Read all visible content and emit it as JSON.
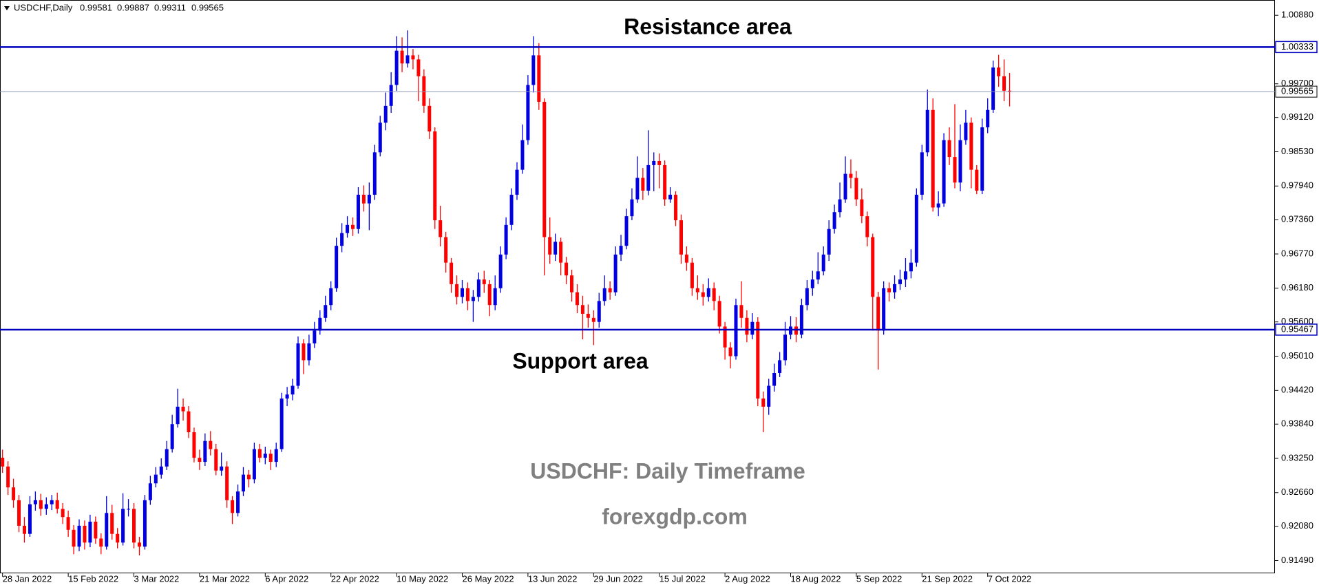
{
  "chart_data": {
    "type": "candlestick",
    "symbol": "USDCHF,Daily",
    "annotations": [
      "Resistance area",
      "Support area",
      "USDCHF: Daily Timeframe",
      "forexgdp.com"
    ],
    "colors": {
      "up": "#0000e0",
      "down": "#ff0000",
      "level": "#0000c0",
      "last": "#8c96b4"
    },
    "ylim": [
      0.91271,
      1.01143
    ],
    "yticks": [
      {
        "value": 1.0088,
        "label": "1.00880"
      },
      {
        "value": 0.997,
        "label": "0.99700"
      },
      {
        "value": 0.9912,
        "label": "0.99120"
      },
      {
        "value": 0.9853,
        "label": "0.98530"
      },
      {
        "value": 0.9794,
        "label": "0.97940"
      },
      {
        "value": 0.9736,
        "label": "0.97360"
      },
      {
        "value": 0.9677,
        "label": "0.96770"
      },
      {
        "value": 0.9618,
        "label": "0.96180"
      },
      {
        "value": 0.956,
        "label": "0.95600"
      },
      {
        "value": 0.9501,
        "label": "0.95010"
      },
      {
        "value": 0.9442,
        "label": "0.94420"
      },
      {
        "value": 0.9384,
        "label": "0.93840"
      },
      {
        "value": 0.9325,
        "label": "0.93250"
      },
      {
        "value": 0.9266,
        "label": "0.92660"
      },
      {
        "value": 0.9208,
        "label": "0.92080"
      },
      {
        "value": 0.9149,
        "label": "0.91490"
      }
    ],
    "xticks": [
      {
        "value": 0,
        "label": "28 Jan 2022"
      },
      {
        "value": 12,
        "label": "15 Feb 2022"
      },
      {
        "value": 24,
        "label": "3 Mar 2022"
      },
      {
        "value": 36,
        "label": "21 Mar 2022"
      },
      {
        "value": 48,
        "label": "6 Apr 2022"
      },
      {
        "value": 60,
        "label": "22 Apr 2022"
      },
      {
        "value": 72,
        "label": "10 May 2022"
      },
      {
        "value": 84,
        "label": "26 May 2022"
      },
      {
        "value": 96,
        "label": "13 Jun 2022"
      },
      {
        "value": 108,
        "label": "29 Jun 2022"
      },
      {
        "value": 120,
        "label": "15 Jul 2022"
      },
      {
        "value": 132,
        "label": "2 Aug 2022"
      },
      {
        "value": 144,
        "label": "18 Aug 2022"
      },
      {
        "value": 156,
        "label": "5 Sep 2022"
      },
      {
        "value": 168,
        "label": "21 Sep 2022"
      },
      {
        "value": 180,
        "label": "7 Oct 2022"
      }
    ],
    "hlines": [
      {
        "value": 1.00333
      },
      {
        "value": 0.95467
      }
    ],
    "ohlc": [
      [
        0.9326,
        0.934,
        0.93,
        0.9311
      ],
      [
        0.9311,
        0.932,
        0.9262,
        0.9275
      ],
      [
        0.9275,
        0.929,
        0.924,
        0.9253
      ],
      [
        0.9253,
        0.9262,
        0.9198,
        0.9209
      ],
      [
        0.9209,
        0.9224,
        0.918,
        0.9195
      ],
      [
        0.9195,
        0.926,
        0.919,
        0.9246
      ],
      [
        0.9246,
        0.9268,
        0.9235,
        0.9253
      ],
      [
        0.9253,
        0.9264,
        0.9226,
        0.9238
      ],
      [
        0.9238,
        0.9258,
        0.9228,
        0.9246
      ],
      [
        0.9246,
        0.9262,
        0.9236,
        0.9253
      ],
      [
        0.9253,
        0.9266,
        0.923,
        0.9238
      ],
      [
        0.9238,
        0.9248,
        0.9212,
        0.9224
      ],
      [
        0.9224,
        0.9235,
        0.919,
        0.9202
      ],
      [
        0.9202,
        0.921,
        0.916,
        0.9173
      ],
      [
        0.9173,
        0.922,
        0.9165,
        0.9209
      ],
      [
        0.9209,
        0.9218,
        0.9168,
        0.918
      ],
      [
        0.918,
        0.9228,
        0.9172,
        0.9216
      ],
      [
        0.9216,
        0.9225,
        0.9178,
        0.9187
      ],
      [
        0.9187,
        0.9196,
        0.916,
        0.9173
      ],
      [
        0.9173,
        0.926,
        0.9168,
        0.9231
      ],
      [
        0.9231,
        0.9245,
        0.9185,
        0.9195
      ],
      [
        0.9195,
        0.9205,
        0.917,
        0.918
      ],
      [
        0.918,
        0.9265,
        0.9175,
        0.9238
      ],
      [
        0.9238,
        0.9255,
        0.9225,
        0.9238
      ],
      [
        0.9238,
        0.9248,
        0.917,
        0.918
      ],
      [
        0.918,
        0.919,
        0.9158,
        0.9173
      ],
      [
        0.9173,
        0.9262,
        0.9168,
        0.9253
      ],
      [
        0.9253,
        0.9295,
        0.9245,
        0.9282
      ],
      [
        0.9282,
        0.931,
        0.9275,
        0.9297
      ],
      [
        0.9297,
        0.9325,
        0.929,
        0.9311
      ],
      [
        0.9311,
        0.9355,
        0.9305,
        0.9341
      ],
      [
        0.9341,
        0.94,
        0.9335,
        0.9384
      ],
      [
        0.9384,
        0.9445,
        0.9378,
        0.9414
      ],
      [
        0.9414,
        0.9428,
        0.939,
        0.9406
      ],
      [
        0.9406,
        0.9415,
        0.936,
        0.937
      ],
      [
        0.937,
        0.9378,
        0.9318,
        0.9326
      ],
      [
        0.9326,
        0.934,
        0.9305,
        0.9319
      ],
      [
        0.9319,
        0.9368,
        0.9312,
        0.9355
      ],
      [
        0.9355,
        0.9372,
        0.933,
        0.9341
      ],
      [
        0.9341,
        0.935,
        0.9296,
        0.9304
      ],
      [
        0.9304,
        0.9335,
        0.9295,
        0.9311
      ],
      [
        0.9311,
        0.932,
        0.924,
        0.9253
      ],
      [
        0.9253,
        0.926,
        0.9212,
        0.9231
      ],
      [
        0.9231,
        0.928,
        0.9225,
        0.9268
      ],
      [
        0.9268,
        0.931,
        0.926,
        0.9297
      ],
      [
        0.9297,
        0.9305,
        0.9275,
        0.9289
      ],
      [
        0.9289,
        0.9352,
        0.9282,
        0.9341
      ],
      [
        0.9341,
        0.935,
        0.9318,
        0.9326
      ],
      [
        0.9326,
        0.9345,
        0.9315,
        0.9333
      ],
      [
        0.9333,
        0.934,
        0.9305,
        0.9319
      ],
      [
        0.9319,
        0.9352,
        0.931,
        0.9341
      ],
      [
        0.9341,
        0.9438,
        0.9336,
        0.9428
      ],
      [
        0.9428,
        0.9448,
        0.9415,
        0.9435
      ],
      [
        0.9435,
        0.9462,
        0.9425,
        0.945
      ],
      [
        0.945,
        0.9535,
        0.9445,
        0.9523
      ],
      [
        0.9523,
        0.953,
        0.947,
        0.9494
      ],
      [
        0.9494,
        0.9538,
        0.9485,
        0.9523
      ],
      [
        0.9523,
        0.956,
        0.9515,
        0.9545
      ],
      [
        0.9545,
        0.958,
        0.9538,
        0.9567
      ],
      [
        0.9567,
        0.9605,
        0.956,
        0.9589
      ],
      [
        0.9589,
        0.963,
        0.958,
        0.9618
      ],
      [
        0.9618,
        0.9705,
        0.9612,
        0.9691
      ],
      [
        0.9691,
        0.973,
        0.968,
        0.9713
      ],
      [
        0.9713,
        0.9742,
        0.9705,
        0.9727
      ],
      [
        0.9727,
        0.974,
        0.9708,
        0.972
      ],
      [
        0.972,
        0.9792,
        0.9712,
        0.9779
      ],
      [
        0.9779,
        0.9795,
        0.975,
        0.9764
      ],
      [
        0.9764,
        0.98,
        0.9718,
        0.9779
      ],
      [
        0.9779,
        0.9865,
        0.977,
        0.9852
      ],
      [
        0.9852,
        0.9915,
        0.9845,
        0.9903
      ],
      [
        0.9903,
        0.9955,
        0.989,
        0.9932
      ],
      [
        0.9932,
        0.999,
        0.992,
        0.9968
      ],
      [
        0.9968,
        1.0052,
        0.9958,
        1.0027
      ],
      [
        1.0027,
        1.005,
        0.999,
        1.0005
      ],
      [
        1.0005,
        1.0062,
        0.9998,
        1.0019
      ],
      [
        1.0019,
        1.003,
        0.9995,
        1.0012
      ],
      [
        1.0012,
        1.002,
        0.994,
        0.9983
      ],
      [
        0.9983,
        0.9995,
        0.992,
        0.9932
      ],
      [
        0.9932,
        0.9945,
        0.9875,
        0.9888
      ],
      [
        0.9888,
        0.9895,
        0.972,
        0.9735
      ],
      [
        0.9735,
        0.976,
        0.969,
        0.9706
      ],
      [
        0.9706,
        0.9715,
        0.9645,
        0.9662
      ],
      [
        0.9662,
        0.967,
        0.961,
        0.9625
      ],
      [
        0.9625,
        0.964,
        0.959,
        0.9603
      ],
      [
        0.9603,
        0.9632,
        0.9592,
        0.9618
      ],
      [
        0.9618,
        0.9628,
        0.958,
        0.9596
      ],
      [
        0.9596,
        0.9615,
        0.956,
        0.9603
      ],
      [
        0.9603,
        0.9645,
        0.9595,
        0.9633
      ],
      [
        0.9633,
        0.9648,
        0.961,
        0.9625
      ],
      [
        0.9625,
        0.9632,
        0.957,
        0.9589
      ],
      [
        0.9589,
        0.964,
        0.958,
        0.9618
      ],
      [
        0.9618,
        0.969,
        0.961,
        0.9676
      ],
      [
        0.9676,
        0.974,
        0.9668,
        0.9727
      ],
      [
        0.9727,
        0.979,
        0.9718,
        0.9779
      ],
      [
        0.9779,
        0.9835,
        0.977,
        0.9822
      ],
      [
        0.9822,
        0.99,
        0.9815,
        0.9873
      ],
      [
        0.9873,
        0.9985,
        0.9865,
        0.9968
      ],
      [
        0.9968,
        1.0052,
        0.9955,
        1.0019
      ],
      [
        1.0019,
        1.004,
        0.9925,
        0.9939
      ],
      [
        0.9939,
        0.9945,
        0.964,
        0.9706
      ],
      [
        0.9706,
        0.974,
        0.966,
        0.9676
      ],
      [
        0.9676,
        0.9712,
        0.9665,
        0.9698
      ],
      [
        0.9698,
        0.9705,
        0.964,
        0.9662
      ],
      [
        0.9662,
        0.9672,
        0.9625,
        0.964
      ],
      [
        0.964,
        0.965,
        0.9595,
        0.9611
      ],
      [
        0.9611,
        0.9625,
        0.9575,
        0.9589
      ],
      [
        0.9589,
        0.9605,
        0.953,
        0.9574
      ],
      [
        0.9574,
        0.959,
        0.955,
        0.9567
      ],
      [
        0.9567,
        0.958,
        0.952,
        0.956
      ],
      [
        0.956,
        0.961,
        0.955,
        0.9596
      ],
      [
        0.9596,
        0.964,
        0.9588,
        0.9618
      ],
      [
        0.9618,
        0.963,
        0.9598,
        0.9611
      ],
      [
        0.9611,
        0.969,
        0.9605,
        0.9676
      ],
      [
        0.9676,
        0.971,
        0.9665,
        0.9691
      ],
      [
        0.9691,
        0.9755,
        0.9685,
        0.9742
      ],
      [
        0.9742,
        0.979,
        0.9735,
        0.9771
      ],
      [
        0.9771,
        0.9845,
        0.9765,
        0.9808
      ],
      [
        0.9808,
        0.9825,
        0.977,
        0.9786
      ],
      [
        0.9786,
        0.989,
        0.9778,
        0.983
      ],
      [
        0.983,
        0.9852,
        0.9785,
        0.9837
      ],
      [
        0.9837,
        0.985,
        0.979,
        0.983
      ],
      [
        0.983,
        0.9838,
        0.976,
        0.9771
      ],
      [
        0.9771,
        0.9792,
        0.9765,
        0.9779
      ],
      [
        0.9779,
        0.9785,
        0.9725,
        0.9735
      ],
      [
        0.9735,
        0.9745,
        0.966,
        0.9676
      ],
      [
        0.9676,
        0.969,
        0.9648,
        0.9662
      ],
      [
        0.9662,
        0.967,
        0.9605,
        0.9618
      ],
      [
        0.9618,
        0.964,
        0.9598,
        0.9611
      ],
      [
        0.9611,
        0.9625,
        0.9588,
        0.9603
      ],
      [
        0.9603,
        0.9635,
        0.9595,
        0.9618
      ],
      [
        0.9618,
        0.9628,
        0.958,
        0.9596
      ],
      [
        0.9596,
        0.9605,
        0.954,
        0.9552
      ],
      [
        0.9552,
        0.956,
        0.9495,
        0.9516
      ],
      [
        0.9516,
        0.9525,
        0.948,
        0.9501
      ],
      [
        0.9501,
        0.96,
        0.9495,
        0.9589
      ],
      [
        0.9589,
        0.963,
        0.955,
        0.9567
      ],
      [
        0.9567,
        0.958,
        0.9525,
        0.9538
      ],
      [
        0.9538,
        0.9575,
        0.953,
        0.956
      ],
      [
        0.956,
        0.9568,
        0.9415,
        0.9428
      ],
      [
        0.9428,
        0.944,
        0.937,
        0.9414
      ],
      [
        0.9414,
        0.9462,
        0.94,
        0.945
      ],
      [
        0.945,
        0.9488,
        0.944,
        0.9472
      ],
      [
        0.9472,
        0.9508,
        0.9465,
        0.9494
      ],
      [
        0.9494,
        0.956,
        0.9485,
        0.9538
      ],
      [
        0.9538,
        0.957,
        0.953,
        0.9552
      ],
      [
        0.9552,
        0.9568,
        0.9525,
        0.9538
      ],
      [
        0.9538,
        0.96,
        0.9532,
        0.9589
      ],
      [
        0.9589,
        0.9632,
        0.958,
        0.9618
      ],
      [
        0.9618,
        0.9648,
        0.9605,
        0.9633
      ],
      [
        0.9633,
        0.968,
        0.9625,
        0.9647
      ],
      [
        0.9647,
        0.969,
        0.964,
        0.9676
      ],
      [
        0.9676,
        0.9735,
        0.9665,
        0.972
      ],
      [
        0.972,
        0.9762,
        0.9712,
        0.9749
      ],
      [
        0.9749,
        0.98,
        0.974,
        0.9771
      ],
      [
        0.9771,
        0.9845,
        0.9765,
        0.9815
      ],
      [
        0.9815,
        0.984,
        0.979,
        0.9808
      ],
      [
        0.9808,
        0.982,
        0.976,
        0.9771
      ],
      [
        0.9771,
        0.979,
        0.973,
        0.9742
      ],
      [
        0.9742,
        0.975,
        0.969,
        0.9706
      ],
      [
        0.9706,
        0.9712,
        0.9545,
        0.9603
      ],
      [
        0.9603,
        0.9612,
        0.9478,
        0.9545
      ],
      [
        0.9545,
        0.963,
        0.9538,
        0.9618
      ],
      [
        0.9618,
        0.9628,
        0.9595,
        0.9611
      ],
      [
        0.9611,
        0.964,
        0.96,
        0.9625
      ],
      [
        0.9625,
        0.965,
        0.9615,
        0.9633
      ],
      [
        0.9633,
        0.967,
        0.962,
        0.9647
      ],
      [
        0.9647,
        0.9685,
        0.9635,
        0.9662
      ],
      [
        0.9662,
        0.979,
        0.9655,
        0.9779
      ],
      [
        0.9779,
        0.9865,
        0.977,
        0.9852
      ],
      [
        0.9852,
        0.996,
        0.9845,
        0.9925
      ],
      [
        0.9925,
        0.9945,
        0.975,
        0.9757
      ],
      [
        0.9757,
        0.9785,
        0.9742,
        0.9764
      ],
      [
        0.9764,
        0.9885,
        0.9758,
        0.9873
      ],
      [
        0.9873,
        0.9895,
        0.983,
        0.9844
      ],
      [
        0.9844,
        0.9935,
        0.979,
        0.98
      ],
      [
        0.98,
        0.99,
        0.9785,
        0.9873
      ],
      [
        0.9873,
        0.9925,
        0.9865,
        0.9903
      ],
      [
        0.9903,
        0.9912,
        0.979,
        0.9822
      ],
      [
        0.9822,
        0.983,
        0.978,
        0.9786
      ],
      [
        0.9786,
        0.991,
        0.978,
        0.9895
      ],
      [
        0.9895,
        0.9945,
        0.9885,
        0.9925
      ],
      [
        0.9925,
        1.001,
        0.992,
        0.9998
      ],
      [
        0.9998,
        1.002,
        0.9965,
        0.9983
      ],
      [
        0.9983,
        1.0012,
        0.994,
        0.99581
      ],
      [
        0.99581,
        0.99887,
        0.99311,
        0.99565
      ]
    ]
  }
}
